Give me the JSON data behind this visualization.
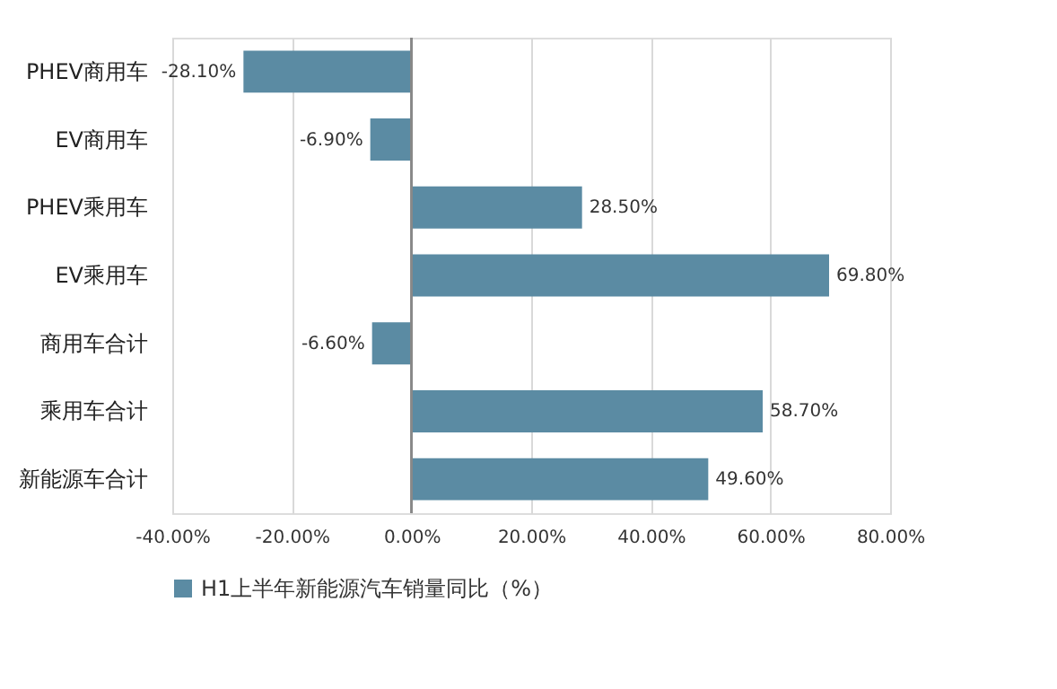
{
  "chart_data": {
    "type": "bar",
    "orientation": "horizontal",
    "categories": [
      "PHEV商用车",
      "EV商用车",
      "PHEV乘用车",
      "EV乘用车",
      "商用车合计",
      "乘用车合计",
      "新能源车合计"
    ],
    "series": [
      {
        "name": "H1上半年新能源汽车销量同比（%）",
        "color": "#5b8ba3",
        "values": [
          -28.1,
          -6.9,
          28.5,
          69.8,
          -6.6,
          58.7,
          49.6
        ],
        "value_labels": [
          "-28.10%",
          "-6.90%",
          "28.50%",
          "69.80%",
          "-6.60%",
          "58.70%",
          "49.60%"
        ]
      }
    ],
    "xlim": [
      -40,
      80
    ],
    "xticks": [
      {
        "value": -40,
        "label": "-40.00%"
      },
      {
        "value": -20,
        "label": "-20.00%"
      },
      {
        "value": 0,
        "label": "0.00%"
      },
      {
        "value": 20,
        "label": "20.00%"
      },
      {
        "value": 40,
        "label": "40.00%"
      },
      {
        "value": 60,
        "label": "60.00%"
      },
      {
        "value": 80,
        "label": "80.00%"
      }
    ],
    "grid": "x",
    "legend": "bottom"
  }
}
